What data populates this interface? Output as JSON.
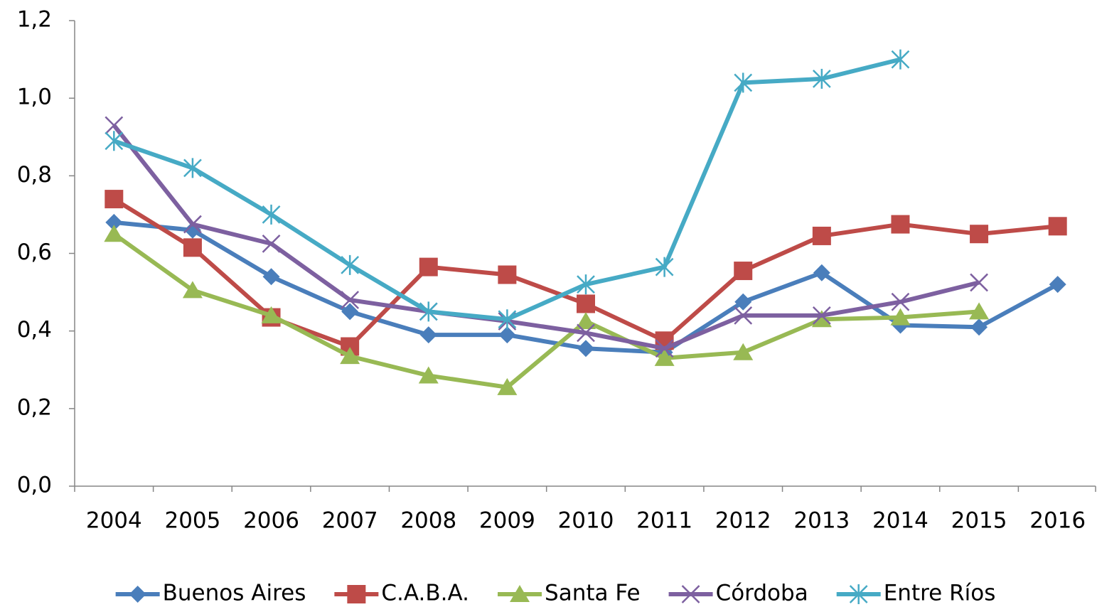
{
  "chart_data": {
    "type": "line",
    "categories": [
      "2004",
      "2005",
      "2006",
      "2007",
      "2008",
      "2009",
      "2010",
      "2011",
      "2012",
      "2013",
      "2014",
      "2015",
      "2016"
    ],
    "series": [
      {
        "name": "Buenos Aires",
        "color": "#4a7ebb",
        "marker": "diamond",
        "values": [
          0.68,
          0.66,
          0.54,
          0.45,
          0.39,
          0.39,
          0.355,
          0.345,
          0.475,
          0.55,
          0.415,
          0.41,
          0.52
        ]
      },
      {
        "name": "C.A.B.A.",
        "color": "#be4b48",
        "marker": "square",
        "values": [
          0.74,
          0.615,
          0.435,
          0.36,
          0.565,
          0.545,
          0.47,
          0.375,
          0.555,
          0.645,
          0.675,
          0.65,
          0.67
        ]
      },
      {
        "name": "Santa Fe",
        "color": "#98b954",
        "marker": "triangle",
        "values": [
          0.65,
          0.505,
          0.44,
          0.335,
          0.285,
          0.255,
          0.425,
          0.33,
          0.345,
          0.43,
          0.435,
          0.45,
          null
        ]
      },
      {
        "name": "Córdoba",
        "color": "#7d60a0",
        "marker": "x",
        "values": [
          0.93,
          0.675,
          0.625,
          0.48,
          0.45,
          0.425,
          0.395,
          0.355,
          0.44,
          0.44,
          0.475,
          0.525,
          null
        ]
      },
      {
        "name": "Entre Ríos",
        "color": "#46aac5",
        "marker": "star",
        "values": [
          0.89,
          0.82,
          0.7,
          0.57,
          0.45,
          0.43,
          0.52,
          0.565,
          1.04,
          1.05,
          1.1,
          null,
          null
        ]
      }
    ],
    "ylim": [
      0,
      1.2
    ],
    "yticks": [
      {
        "value": 0,
        "label": "0,0"
      },
      {
        "value": 0.2,
        "label": "0,2"
      },
      {
        "value": 0.4,
        "label": "0,4"
      },
      {
        "value": 0.6,
        "label": "0,6"
      },
      {
        "value": 0.8,
        "label": "0,8"
      },
      {
        "value": 1.0,
        "label": "1,0"
      },
      {
        "value": 1.2,
        "label": "1,2"
      }
    ],
    "grid": false,
    "legend": "bottom"
  }
}
